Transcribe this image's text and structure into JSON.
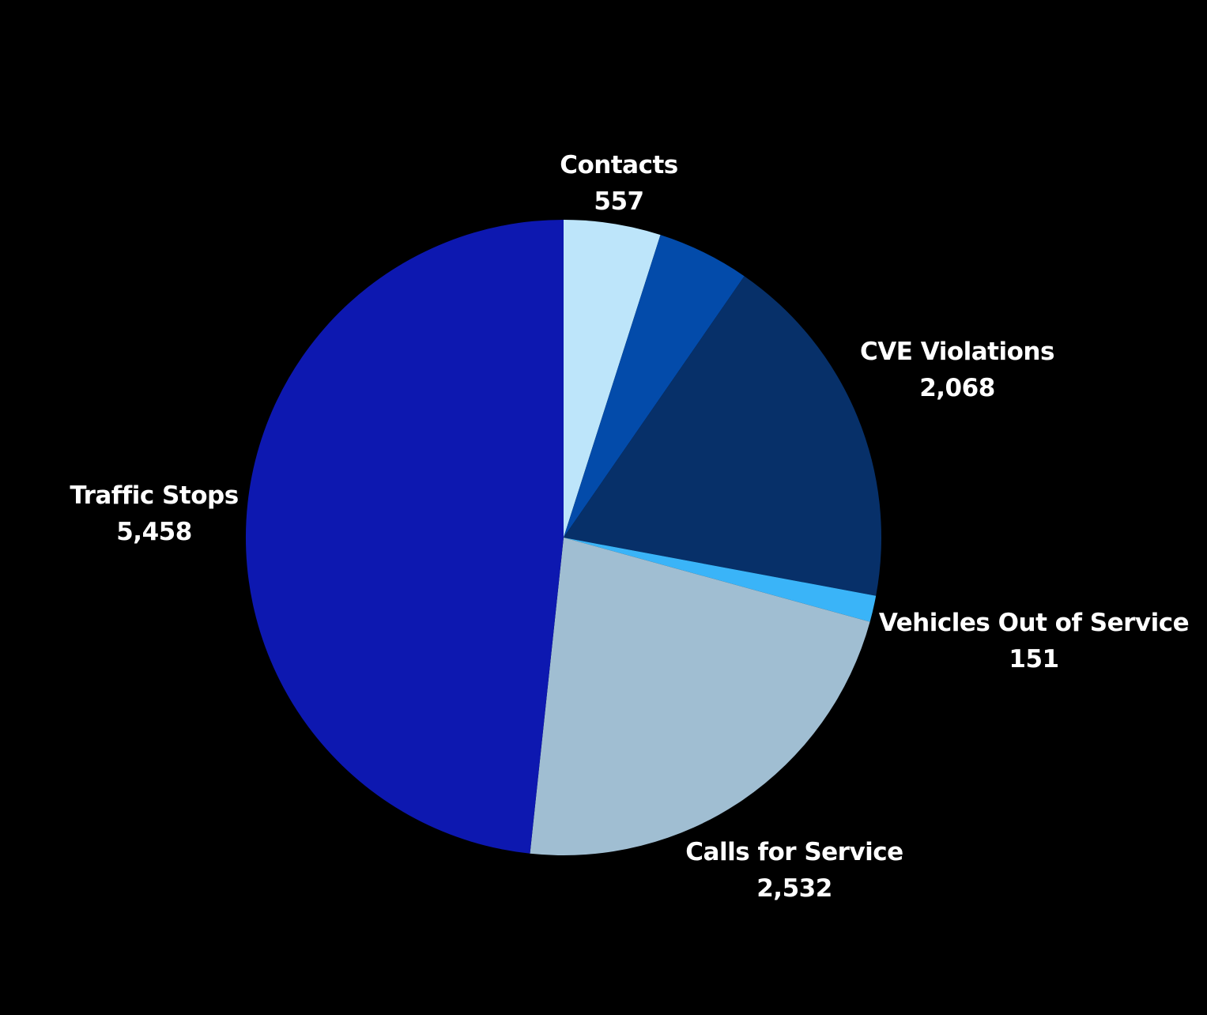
{
  "chart_data": {
    "type": "pie",
    "title": "",
    "slices": [
      {
        "label": "Contacts",
        "value_label": "557",
        "value": 557,
        "color": "#BDE5FA"
      },
      {
        "label": "",
        "value_label": "",
        "value": 531,
        "color": "#034BAA"
      },
      {
        "label": "CVE Violations",
        "value_label": "2,068",
        "value": 2068,
        "color": "#073069"
      },
      {
        "label": "Vehicles Out of Service",
        "value_label": "151",
        "value": 151,
        "color": "#3AB4F8"
      },
      {
        "label": "Calls for Service",
        "value_label": "2,532",
        "value": 2532,
        "color": "#A0BED2"
      },
      {
        "label": "Traffic Stops",
        "value_label": "5,458",
        "value": 5458,
        "color": "#0D18B0"
      }
    ],
    "start_angle": "12 o'clock",
    "direction": "clockwise",
    "legend": "none"
  }
}
